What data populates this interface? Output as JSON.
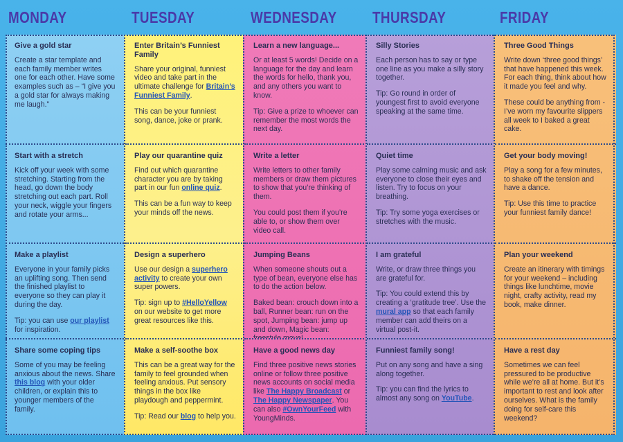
{
  "days": [
    "MONDAY",
    "TUESDAY",
    "WEDNESDAY",
    "THURSDAY",
    "FRIDAY"
  ],
  "columns": [
    {
      "cells": [
        {
          "title": "Give a gold star",
          "parts": [
            [
              "t",
              "Create a star template and each family member writes one for each other. Have some examples such as – “I give you a gold star for always making me laugh.”"
            ]
          ]
        },
        {
          "title": "Start with a stretch",
          "parts": [
            [
              "t",
              "Kick off your week with some stretching. Starting from the head, go down the body stretching out each part. Roll your neck, wiggle your fingers and rotate your arms..."
            ]
          ]
        },
        {
          "title": "Make a playlist",
          "parts": [
            [
              "t",
              "Everyone in your family picks an uplifting song. Then send the finished playlist to everyone so they can play it during the day."
            ],
            [
              "br",
              ""
            ],
            [
              "t",
              "Tip: you can use "
            ],
            [
              "l",
              "our playlist"
            ],
            [
              "t",
              " for inspiration."
            ]
          ]
        },
        {
          "title": "Share some coping tips",
          "parts": [
            [
              "t",
              "Some of you may be feeling anxious about the news. Share "
            ],
            [
              "l",
              "this blog"
            ],
            [
              "t",
              " with your older children, or explain this to younger members of the family."
            ]
          ]
        }
      ]
    },
    {
      "cells": [
        {
          "title": "Enter Britain’s Funniest Family",
          "parts": [
            [
              "t",
              "Share your original, funniest video and take part in the ultimate challenge for "
            ],
            [
              "l",
              "Britain’s Funniest Family"
            ],
            [
              "t",
              "."
            ],
            [
              "br",
              ""
            ],
            [
              "t",
              "This can be your funniest song, dance, joke or prank."
            ]
          ]
        },
        {
          "title": "Play our quarantine quiz",
          "parts": [
            [
              "t",
              "Find out which quarantine character you are by taking part in our fun "
            ],
            [
              "l",
              "online quiz"
            ],
            [
              "t",
              "."
            ],
            [
              "br",
              ""
            ],
            [
              "t",
              "This can be a fun way to keep your minds off the news."
            ]
          ]
        },
        {
          "title": "Design a superhero",
          "parts": [
            [
              "t",
              "Use our design a "
            ],
            [
              "l",
              "superhero activity"
            ],
            [
              "t",
              " to create your own super powers."
            ],
            [
              "br",
              ""
            ],
            [
              "t",
              "Tip: sign up to "
            ],
            [
              "l",
              "#HelloYellow"
            ],
            [
              "t",
              " on our website to get more great resources like this."
            ]
          ]
        },
        {
          "title": "Make a self-soothe box",
          "parts": [
            [
              "t",
              "This can be a great way for the family to feel grounded when feeling anxious. Put sensory things in the box like playdough and peppermint."
            ],
            [
              "br",
              ""
            ],
            [
              "t",
              "Tip: Read our "
            ],
            [
              "l",
              "blog"
            ],
            [
              "t",
              " to help you."
            ]
          ]
        }
      ]
    },
    {
      "cells": [
        {
          "title": "Learn a new language...",
          "parts": [
            [
              "t",
              "Or at least 5 words! Decide on a language for the day and learn the words for hello, thank you, and any others you want to know."
            ],
            [
              "br",
              ""
            ],
            [
              "t",
              "Tip: Give a prize to whoever can remember the most words the next day."
            ]
          ]
        },
        {
          "title": "Write a letter",
          "parts": [
            [
              "t",
              "Write letters to other family members or draw them pictures to show that you’re thinking of them."
            ],
            [
              "br",
              ""
            ],
            [
              "t",
              "You could post them if you’re able to, or show them over video call."
            ]
          ]
        },
        {
          "title": "Jumping Beans",
          "parts": [
            [
              "t",
              "When someone shouts out a type of bean, everyone else has to do the action below."
            ],
            [
              "br",
              ""
            ],
            [
              "t",
              "Baked bean: crouch down into a ball, Runner bean: run on the spot, Jumping bean: jump up and down, Magic bean: freestyle move!"
            ]
          ]
        },
        {
          "title": "Have a good news day",
          "parts": [
            [
              "t",
              "Find three positive news stories online or follow three positive news accounts on social media like "
            ],
            [
              "l",
              "The Happy Broadcast"
            ],
            [
              "t",
              " or "
            ],
            [
              "l",
              "The Happy Newspaper"
            ],
            [
              "t",
              ". You can also "
            ],
            [
              "l",
              "#OwnYourFeed"
            ],
            [
              "t",
              " with YoungMinds."
            ]
          ]
        }
      ]
    },
    {
      "cells": [
        {
          "title": "Silly Stories",
          "parts": [
            [
              "t",
              "Each person has to say or type one line as you make a silly story together."
            ],
            [
              "br",
              ""
            ],
            [
              "t",
              "Tip: Go round in order of youngest first to avoid everyone speaking at the same time."
            ]
          ]
        },
        {
          "title": "Quiet time",
          "parts": [
            [
              "t",
              "Play some calming music and ask everyone to close their eyes and listen. Try to focus on your breathing."
            ],
            [
              "br",
              ""
            ],
            [
              "t",
              "Tip: Try some yoga exercises or stretches with the music."
            ]
          ]
        },
        {
          "title": "I am grateful",
          "parts": [
            [
              "t",
              "Write, or draw three things you are grateful for."
            ],
            [
              "br",
              ""
            ],
            [
              "t",
              "Tip: You could extend this by creating a ‘gratitude tree’. Use the "
            ],
            [
              "l",
              "mural app"
            ],
            [
              "t",
              " so that each family member can add theirs on a virtual post-it."
            ]
          ]
        },
        {
          "title": "Funniest family song!",
          "parts": [
            [
              "t",
              "Put on any song and have a sing along together."
            ],
            [
              "br",
              ""
            ],
            [
              "t",
              "Tip: you can find the lyrics to almost any song on "
            ],
            [
              "l",
              "YouTube"
            ],
            [
              "t",
              "."
            ]
          ]
        }
      ]
    },
    {
      "cells": [
        {
          "title": "Three Good Things",
          "parts": [
            [
              "t",
              "Write down ‘three good things’ that have happened this week. For each thing, think about how it made you feel and why."
            ],
            [
              "br",
              ""
            ],
            [
              "t",
              "These could be anything from - I’ve worn my favourite slippers all week to I baked a great cake."
            ]
          ]
        },
        {
          "title": "Get your body moving!",
          "parts": [
            [
              "t",
              "Play a song for a few minutes, to shake off the tension and have a dance."
            ],
            [
              "br",
              ""
            ],
            [
              "t",
              "Tip: Use this time to practice your funniest family dance!"
            ]
          ]
        },
        {
          "title": "Plan your weekend",
          "parts": [
            [
              "t",
              "Create an itinerary with timings for your weekend – including things like lunchtime, movie night, crafty activity, read my book, make dinner."
            ]
          ]
        },
        {
          "title": "Have a rest day",
          "parts": [
            [
              "t",
              "Sometimes we can feel pressured to be productive while we’re all at home. But it’s important to rest and look after ourselves. What is the family doing for self-care this weekend?"
            ]
          ]
        }
      ]
    }
  ]
}
